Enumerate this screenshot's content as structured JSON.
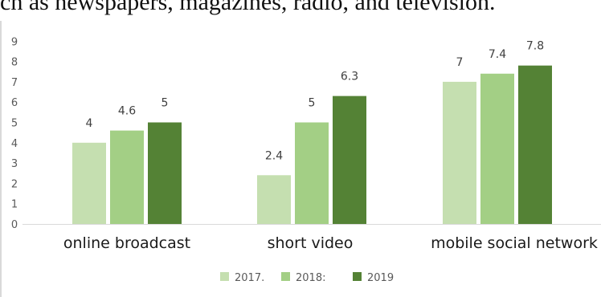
{
  "header": {
    "text": "ch as newspapers, magazines, radio, and television."
  },
  "chart_data": {
    "type": "bar",
    "categories": [
      "online broadcast",
      "short video",
      "mobile social network"
    ],
    "series": [
      {
        "name": "2017.",
        "values": [
          4,
          2.4,
          7
        ],
        "color": "#c5dfb0"
      },
      {
        "name": "2018:",
        "values": [
          4.6,
          5,
          7.4
        ],
        "color": "#a3cf85"
      },
      {
        "name": "2019",
        "values": [
          5,
          6.3,
          7.8
        ],
        "color": "#548235"
      }
    ],
    "value_labels": [
      [
        "4",
        "2.4",
        "7"
      ],
      [
        "4.6",
        "5",
        "7.4"
      ],
      [
        "5",
        "6.3",
        "7.8"
      ]
    ],
    "y_ticks": [
      "0",
      "1",
      "2",
      "3",
      "4",
      "5",
      "6",
      "7",
      "8",
      "9"
    ],
    "ylim": [
      0,
      9
    ],
    "title": "",
    "xlabel": "",
    "ylabel": "",
    "grid": false,
    "legend_position": "bottom"
  }
}
